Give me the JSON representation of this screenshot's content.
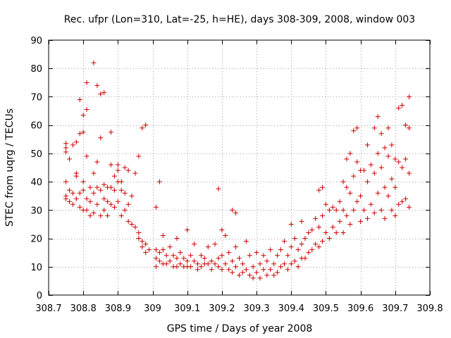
{
  "chart_data": {
    "type": "scatter",
    "title": "Rec. ufpr (Lon=310, Lat=-25, h=HE), days 308-309, 2008, window 003",
    "xlabel": "GPS time / Days of year 2008",
    "ylabel": "STEC from uqrg / TECUs",
    "xlim": [
      308.7,
      309.8
    ],
    "ylim": [
      0,
      90
    ],
    "xticks": [
      308.7,
      308.8,
      308.9,
      309.0,
      309.1,
      309.2,
      309.3,
      309.4,
      309.5,
      309.6,
      309.7,
      309.8
    ],
    "xtick_labels": [
      "308.7",
      "308.8",
      "308.9",
      "309",
      "309.1",
      "309.2",
      "309.3",
      "309.4",
      "309.5",
      "309.6",
      "309.7",
      "309.8"
    ],
    "yticks": [
      0,
      10,
      20,
      30,
      40,
      50,
      60,
      70,
      80,
      90
    ],
    "ytick_labels": [
      "0",
      "10",
      "20",
      "30",
      "40",
      "50",
      "60",
      "70",
      "80",
      "90"
    ],
    "grid": true,
    "marker": "+",
    "color": "#cc0000",
    "series": [
      {
        "points": [
          [
            308.75,
            53.5
          ],
          [
            308.75,
            52
          ],
          [
            308.75,
            50.5
          ],
          [
            308.76,
            48
          ],
          [
            308.77,
            53
          ],
          [
            308.78,
            54
          ],
          [
            308.79,
            57
          ],
          [
            308.79,
            69
          ],
          [
            308.8,
            57.5
          ],
          [
            308.8,
            63.5
          ],
          [
            308.81,
            65.5
          ],
          [
            308.81,
            75
          ],
          [
            308.81,
            49
          ],
          [
            308.83,
            82
          ],
          [
            308.84,
            74
          ],
          [
            308.85,
            71
          ],
          [
            308.85,
            55.5
          ],
          [
            308.86,
            71.5
          ],
          [
            308.88,
            57.5
          ],
          [
            308.96,
            49
          ],
          [
            308.97,
            59
          ],
          [
            308.98,
            60
          ],
          [
            309.01,
            31
          ],
          [
            309.02,
            40
          ],
          [
            309.19,
            37.5
          ],
          [
            309.23,
            30
          ],
          [
            309.24,
            29
          ],
          [
            308.75,
            40
          ],
          [
            308.75,
            35
          ],
          [
            308.75,
            34
          ],
          [
            308.76,
            37
          ],
          [
            308.76,
            33
          ],
          [
            308.77,
            36
          ],
          [
            308.77,
            32
          ],
          [
            308.78,
            43
          ],
          [
            308.78,
            42
          ],
          [
            308.78,
            34
          ],
          [
            308.79,
            36
          ],
          [
            308.79,
            31
          ],
          [
            308.8,
            40
          ],
          [
            308.8,
            37
          ],
          [
            308.8,
            30
          ],
          [
            308.81,
            34
          ],
          [
            308.81,
            30
          ],
          [
            308.82,
            38
          ],
          [
            308.82,
            33
          ],
          [
            308.82,
            28
          ],
          [
            308.83,
            43
          ],
          [
            308.83,
            36
          ],
          [
            308.83,
            29
          ],
          [
            308.84,
            47
          ],
          [
            308.84,
            38
          ],
          [
            308.84,
            32
          ],
          [
            308.85,
            37
          ],
          [
            308.85,
            28
          ],
          [
            308.86,
            39
          ],
          [
            308.86,
            34
          ],
          [
            308.86,
            30
          ],
          [
            308.87,
            38
          ],
          [
            308.87,
            33
          ],
          [
            308.87,
            28
          ],
          [
            308.88,
            38
          ],
          [
            308.88,
            32
          ],
          [
            308.88,
            46
          ],
          [
            308.89,
            42
          ],
          [
            308.89,
            37
          ],
          [
            308.89,
            31
          ],
          [
            308.9,
            46
          ],
          [
            308.9,
            44
          ],
          [
            308.9,
            40
          ],
          [
            308.9,
            33
          ],
          [
            308.91,
            40
          ],
          [
            308.91,
            37
          ],
          [
            308.91,
            28
          ],
          [
            308.92,
            45
          ],
          [
            308.92,
            36
          ],
          [
            308.92,
            30
          ],
          [
            308.93,
            44
          ],
          [
            308.93,
            32
          ],
          [
            308.93,
            26
          ],
          [
            308.94,
            35
          ],
          [
            308.94,
            25
          ],
          [
            308.95,
            43
          ],
          [
            308.95,
            24
          ],
          [
            308.96,
            22
          ],
          [
            308.96,
            20
          ],
          [
            308.97,
            19
          ],
          [
            308.97,
            17
          ],
          [
            308.98,
            18
          ],
          [
            308.98,
            15
          ],
          [
            308.99,
            16
          ],
          [
            309.01,
            16
          ],
          [
            309.01,
            13
          ],
          [
            309.01,
            10
          ],
          [
            309.02,
            15
          ],
          [
            309.02,
            12
          ],
          [
            309.03,
            21
          ],
          [
            309.03,
            16
          ],
          [
            309.03,
            11
          ],
          [
            309.04,
            14
          ],
          [
            309.04,
            11
          ],
          [
            309.05,
            17
          ],
          [
            309.05,
            12
          ],
          [
            309.06,
            14
          ],
          [
            309.06,
            10
          ],
          [
            309.07,
            20
          ],
          [
            309.07,
            13
          ],
          [
            309.07,
            10
          ],
          [
            309.08,
            15
          ],
          [
            309.08,
            11
          ],
          [
            309.09,
            13
          ],
          [
            309.09,
            10
          ],
          [
            309.1,
            23
          ],
          [
            309.1,
            12
          ],
          [
            309.1,
            10
          ],
          [
            309.11,
            14
          ],
          [
            309.11,
            10
          ],
          [
            309.12,
            18
          ],
          [
            309.12,
            12
          ],
          [
            309.13,
            11
          ],
          [
            309.13,
            9
          ],
          [
            309.14,
            14
          ],
          [
            309.14,
            10
          ],
          [
            309.15,
            13
          ],
          [
            309.15,
            11
          ],
          [
            309.16,
            17
          ],
          [
            309.16,
            11
          ],
          [
            309.17,
            12
          ],
          [
            309.17,
            9
          ],
          [
            309.18,
            18
          ],
          [
            309.18,
            11
          ],
          [
            309.19,
            13
          ],
          [
            309.19,
            10
          ],
          [
            309.2,
            23
          ],
          [
            309.2,
            14
          ],
          [
            309.2,
            9
          ],
          [
            309.21,
            21
          ],
          [
            309.21,
            11
          ],
          [
            309.22,
            15
          ],
          [
            309.22,
            9
          ],
          [
            309.23,
            12
          ],
          [
            309.23,
            8
          ],
          [
            309.24,
            17
          ],
          [
            309.24,
            10
          ],
          [
            309.25,
            13
          ],
          [
            309.25,
            7
          ],
          [
            309.26,
            11
          ],
          [
            309.26,
            8
          ],
          [
            309.27,
            19
          ],
          [
            309.27,
            9
          ],
          [
            309.28,
            14
          ],
          [
            309.28,
            7
          ],
          [
            309.29,
            10
          ],
          [
            309.29,
            6
          ],
          [
            309.3,
            15
          ],
          [
            309.3,
            8
          ],
          [
            309.31,
            11
          ],
          [
            309.31,
            6
          ],
          [
            309.32,
            14
          ],
          [
            309.32,
            9
          ],
          [
            309.33,
            12
          ],
          [
            309.33,
            7
          ],
          [
            309.34,
            16
          ],
          [
            309.34,
            9
          ],
          [
            309.35,
            11
          ],
          [
            309.35,
            7
          ],
          [
            309.36,
            14
          ],
          [
            309.36,
            8
          ],
          [
            309.37,
            16
          ],
          [
            309.37,
            10
          ],
          [
            309.38,
            19
          ],
          [
            309.38,
            11
          ],
          [
            309.39,
            14
          ],
          [
            309.39,
            9
          ],
          [
            309.4,
            25
          ],
          [
            309.4,
            17
          ],
          [
            309.4,
            11
          ],
          [
            309.41,
            20
          ],
          [
            309.41,
            12
          ],
          [
            309.42,
            16
          ],
          [
            309.42,
            10
          ],
          [
            309.43,
            26
          ],
          [
            309.43,
            18
          ],
          [
            309.43,
            13
          ],
          [
            309.44,
            20
          ],
          [
            309.44,
            13
          ],
          [
            309.45,
            22
          ],
          [
            309.45,
            15
          ],
          [
            309.46,
            23
          ],
          [
            309.46,
            16
          ],
          [
            309.47,
            27
          ],
          [
            309.47,
            18
          ],
          [
            309.48,
            37
          ],
          [
            309.48,
            24
          ],
          [
            309.48,
            17
          ],
          [
            309.49,
            38
          ],
          [
            309.49,
            28
          ],
          [
            309.49,
            19
          ],
          [
            309.5,
            32
          ],
          [
            309.5,
            22
          ],
          [
            309.51,
            30
          ],
          [
            309.51,
            20
          ],
          [
            309.52,
            31
          ],
          [
            309.52,
            24
          ],
          [
            309.53,
            30
          ],
          [
            309.53,
            22
          ],
          [
            309.54,
            33
          ],
          [
            309.54,
            26
          ],
          [
            309.55,
            40
          ],
          [
            309.55,
            30
          ],
          [
            309.55,
            22
          ],
          [
            309.56,
            48
          ],
          [
            309.56,
            38
          ],
          [
            309.56,
            28
          ],
          [
            309.57,
            50
          ],
          [
            309.57,
            36
          ],
          [
            309.57,
            25
          ],
          [
            309.58,
            58
          ],
          [
            309.58,
            42
          ],
          [
            309.58,
            30
          ],
          [
            309.59,
            59
          ],
          [
            309.59,
            47
          ],
          [
            309.59,
            33
          ],
          [
            309.6,
            44
          ],
          [
            309.6,
            35
          ],
          [
            309.6,
            26
          ],
          [
            309.61,
            44
          ],
          [
            309.61,
            30
          ],
          [
            309.62,
            53
          ],
          [
            309.62,
            40
          ],
          [
            309.62,
            27
          ],
          [
            309.63,
            46
          ],
          [
            309.63,
            32
          ],
          [
            309.64,
            59
          ],
          [
            309.64,
            43
          ],
          [
            309.64,
            29
          ],
          [
            309.65,
            63
          ],
          [
            309.65,
            50
          ],
          [
            309.65,
            36
          ],
          [
            309.66,
            57
          ],
          [
            309.66,
            45
          ],
          [
            309.66,
            30
          ],
          [
            309.67,
            52
          ],
          [
            309.67,
            38
          ],
          [
            309.67,
            27
          ],
          [
            309.68,
            59
          ],
          [
            309.68,
            49
          ],
          [
            309.68,
            35
          ],
          [
            309.69,
            53
          ],
          [
            309.69,
            41
          ],
          [
            309.69,
            30
          ],
          [
            309.7,
            48
          ],
          [
            309.7,
            38
          ],
          [
            309.7,
            28
          ],
          [
            309.71,
            66
          ],
          [
            309.71,
            47
          ],
          [
            309.71,
            32
          ],
          [
            309.72,
            67
          ],
          [
            309.72,
            45
          ],
          [
            309.72,
            33
          ],
          [
            309.73,
            60
          ],
          [
            309.73,
            48
          ],
          [
            309.73,
            34
          ],
          [
            309.74,
            70
          ],
          [
            309.74,
            59
          ],
          [
            309.74,
            43
          ],
          [
            309.74,
            31
          ]
        ]
      }
    ]
  }
}
